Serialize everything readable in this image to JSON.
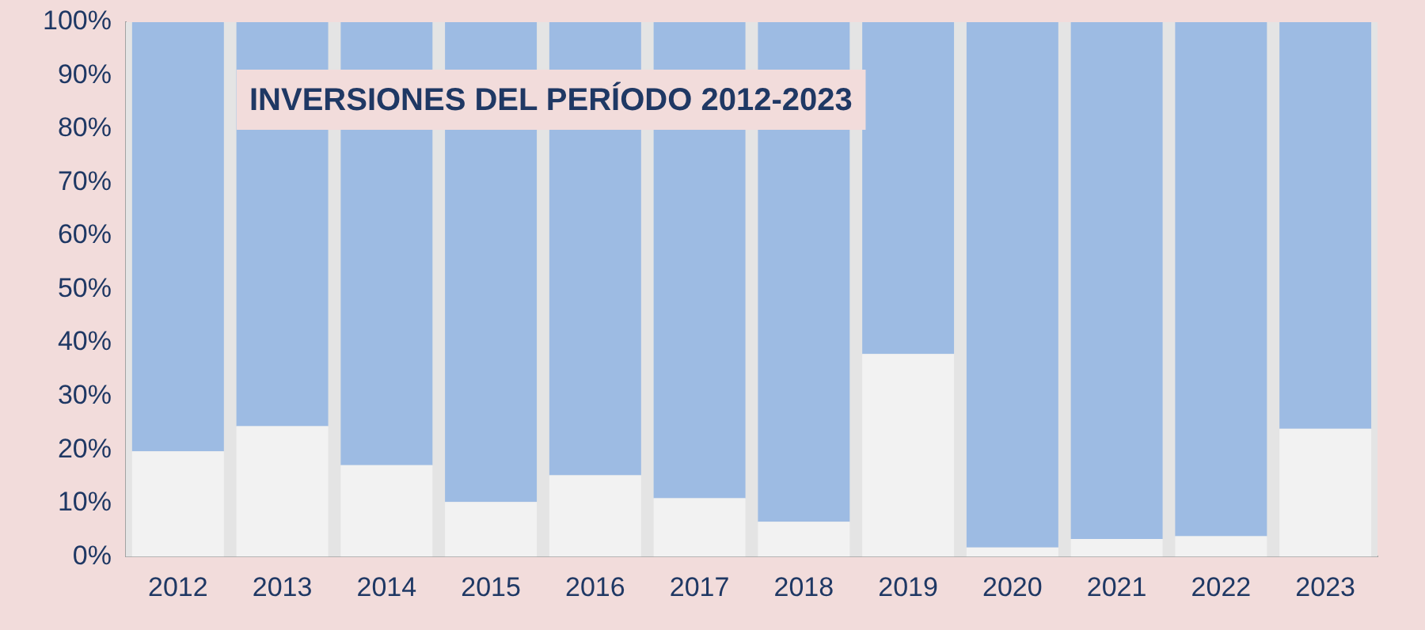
{
  "chart_data": {
    "type": "bar",
    "title": "INVERSIONES DEL PERÍODO 2012-2023",
    "stacked": true,
    "categories": [
      "2012",
      "2013",
      "2014",
      "2015",
      "2016",
      "2017",
      "2018",
      "2019",
      "2020",
      "2021",
      "2022",
      "2023"
    ],
    "series": [
      {
        "color": "#f2f2f2",
        "values": [
          19.7,
          24.4,
          17.1,
          10.2,
          15.2,
          10.9,
          6.5,
          37.9,
          1.7,
          3.3,
          3.8,
          23.9
        ]
      },
      {
        "color": "#9dbbe3",
        "values": [
          80.3,
          75.6,
          82.9,
          89.8,
          84.8,
          89.1,
          93.5,
          62.1,
          98.3,
          96.7,
          96.2,
          76.1
        ]
      }
    ],
    "ylim": [
      0,
      100
    ],
    "yticks": [
      {
        "value": 0,
        "label": "0%"
      },
      {
        "value": 10,
        "label": "10%"
      },
      {
        "value": 20,
        "label": "20%"
      },
      {
        "value": 30,
        "label": "30%"
      },
      {
        "value": 40,
        "label": "40%"
      },
      {
        "value": 50,
        "label": "50%"
      },
      {
        "value": 60,
        "label": "60%"
      },
      {
        "value": 70,
        "label": "70%"
      },
      {
        "value": 80,
        "label": "80%"
      },
      {
        "value": 90,
        "label": "90%"
      },
      {
        "value": 100,
        "label": "100%"
      }
    ],
    "grid": false,
    "legend": false
  }
}
